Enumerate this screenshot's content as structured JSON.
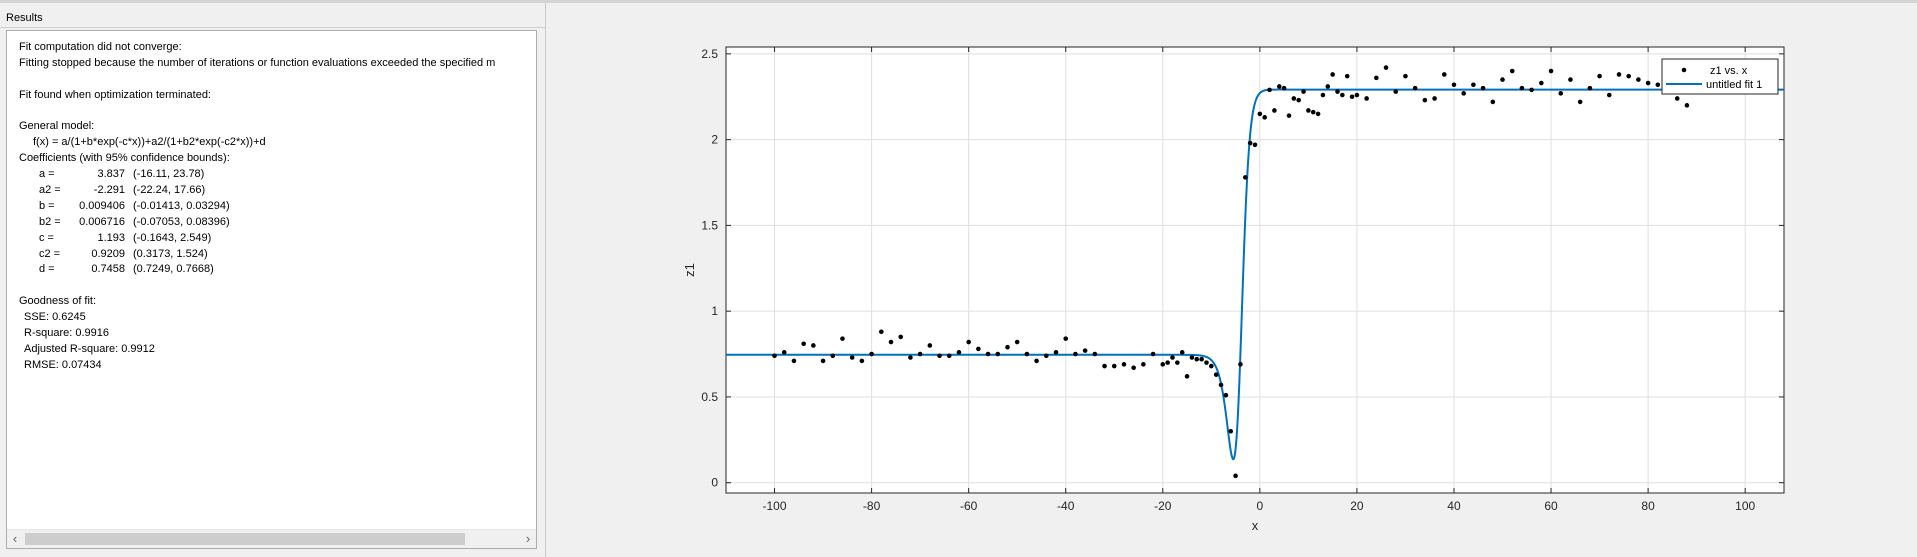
{
  "results": {
    "title": "Results",
    "status": "Fit computation did not converge:",
    "message": "Fitting stopped because the number of iterations or function evaluations exceeded the specified m",
    "fit_found": "Fit found when optimization terminated:",
    "model_header": "General model:",
    "model_equation": "f(x) = a/(1+b*exp(-c*x))+a2/(1+b2*exp(-c2*x))+d",
    "coef_header": "Coefficients (with 95% confidence bounds):",
    "coefficients": [
      {
        "name": "a =",
        "value": "3.837",
        "bounds": "(-16.11, 23.78)"
      },
      {
        "name": "a2 =",
        "value": "-2.291",
        "bounds": "(-22.24, 17.66)"
      },
      {
        "name": "b =",
        "value": "0.009406",
        "bounds": "(-0.01413, 0.03294)"
      },
      {
        "name": "b2 =",
        "value": "0.006716",
        "bounds": "(-0.07053, 0.08396)"
      },
      {
        "name": "c =",
        "value": "1.193",
        "bounds": "(-0.1643, 2.549)"
      },
      {
        "name": "c2 =",
        "value": "0.9209",
        "bounds": "(0.3173, 1.524)"
      },
      {
        "name": "d =",
        "value": "0.7458",
        "bounds": "(0.7249, 0.7668)"
      }
    ],
    "gof_header": "Goodness of fit:",
    "gof": [
      "SSE: 0.6245",
      "R-square: 0.9916",
      "Adjusted R-square: 0.9912",
      "RMSE: 0.07434"
    ]
  },
  "scrollbar": {
    "left_glyph": "‹",
    "right_glyph": "›"
  },
  "chart_data": {
    "type": "scatter",
    "xlabel": "x",
    "ylabel": "z1",
    "xlim": [
      -110,
      108
    ],
    "ylim": [
      -0.06,
      2.54
    ],
    "xticks": [
      -100,
      -80,
      -60,
      -40,
      -20,
      0,
      20,
      40,
      60,
      80,
      100
    ],
    "yticks": [
      0,
      0.5,
      1,
      1.5,
      2,
      2.5
    ],
    "grid": true,
    "legend_position": "top-right",
    "legend": [
      "z1 vs. x",
      "untitled fit 1"
    ],
    "colors": {
      "points": "#000000",
      "fit": "#0072BD",
      "grid": "#dfdfdf",
      "axes": "#262626"
    },
    "fit_params": {
      "a": 3.837,
      "a2": -2.291,
      "b": 0.009406,
      "b2": 0.006716,
      "c": 1.193,
      "c2": 0.9209,
      "d": 0.7458
    },
    "series": [
      {
        "name": "z1 vs. x",
        "x": [
          -100,
          -98,
          -96,
          -94,
          -92,
          -90,
          -88,
          -86,
          -84,
          -82,
          -80,
          -78,
          -76,
          -74,
          -72,
          -70,
          -68,
          -66,
          -64,
          -62,
          -60,
          -58,
          -56,
          -54,
          -52,
          -50,
          -48,
          -46,
          -44,
          -42,
          -40,
          -38,
          -36,
          -34,
          -32,
          -30,
          -28,
          -26,
          -24,
          -22,
          -20,
          -19,
          -18,
          -17,
          -16,
          -15,
          -14,
          -13,
          -12,
          -11,
          -10,
          -9,
          -8,
          -7,
          -6,
          -5,
          -4,
          -3,
          -2,
          -1,
          0,
          1,
          2,
          3,
          4,
          5,
          6,
          7,
          8,
          9,
          10,
          11,
          12,
          13,
          14,
          15,
          16,
          17,
          18,
          19,
          20,
          22,
          24,
          26,
          28,
          30,
          32,
          34,
          36,
          38,
          40,
          42,
          44,
          46,
          48,
          50,
          52,
          54,
          56,
          58,
          60,
          62,
          64,
          66,
          68,
          70,
          72,
          74,
          76,
          78,
          80,
          82,
          84,
          86,
          88
        ],
        "y": [
          0.74,
          0.76,
          0.71,
          0.81,
          0.8,
          0.71,
          0.74,
          0.84,
          0.73,
          0.71,
          0.75,
          0.88,
          0.82,
          0.85,
          0.73,
          0.75,
          0.8,
          0.74,
          0.74,
          0.76,
          0.82,
          0.78,
          0.75,
          0.75,
          0.79,
          0.82,
          0.75,
          0.71,
          0.74,
          0.76,
          0.84,
          0.75,
          0.77,
          0.75,
          0.68,
          0.68,
          0.69,
          0.67,
          0.69,
          0.75,
          0.69,
          0.7,
          0.73,
          0.7,
          0.76,
          0.62,
          0.73,
          0.72,
          0.72,
          0.7,
          0.68,
          0.63,
          0.57,
          0.51,
          0.3,
          0.04,
          0.69,
          1.78,
          1.98,
          1.97,
          2.15,
          2.13,
          2.29,
          2.17,
          2.31,
          2.3,
          2.14,
          2.24,
          2.23,
          2.28,
          2.17,
          2.16,
          2.15,
          2.26,
          2.31,
          2.38,
          2.28,
          2.26,
          2.37,
          2.25,
          2.26,
          2.24,
          2.36,
          2.42,
          2.28,
          2.37,
          2.3,
          2.23,
          2.24,
          2.38,
          2.32,
          2.27,
          2.32,
          2.3,
          2.22,
          2.35,
          2.4,
          2.3,
          2.29,
          2.33,
          2.4,
          2.27,
          2.35,
          2.22,
          2.3,
          2.37,
          2.26,
          2.38,
          2.37,
          2.35,
          2.33,
          2.32,
          2.33,
          2.24,
          2.2
        ]
      }
    ]
  }
}
